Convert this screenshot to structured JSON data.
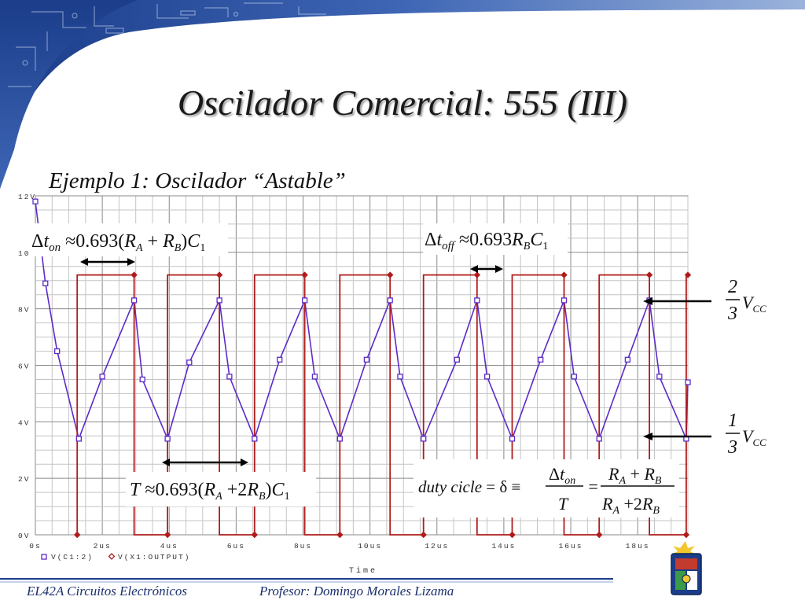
{
  "slide": {
    "title": "Oscilador Comercial: 555 (III)",
    "subtitle": "Ejemplo 1: Oscilador “Astable”",
    "footer_left": "EL42A Circuitos Electrónicos",
    "footer_right": "Profesor: Domingo Morales Lizama"
  },
  "annotations": {
    "ton_formula": "Δt_on ≈ 0.693(R_A + R_B)C_1",
    "toff_formula": "Δt_off ≈ 0.693 R_B C_1",
    "period_formula": "T ≈ 0.693(R_A + 2R_B)C_1",
    "duty_formula": "duty cicle = δ ≡ Δt_on / T = (R_A + R_B) / (R_A + 2R_B)",
    "upper_threshold": "2/3 V_CC",
    "lower_threshold": "1/3 V_CC"
  },
  "chart_data": {
    "type": "line",
    "xlabel": "Time",
    "ylabel": "",
    "x_unit": "us",
    "xlim": [
      0,
      19.5
    ],
    "ylim": [
      0,
      12
    ],
    "x_ticks": [
      {
        "value": 0,
        "label": "0s"
      },
      {
        "value": 2,
        "label": "2us"
      },
      {
        "value": 4,
        "label": "4us"
      },
      {
        "value": 6,
        "label": "6us"
      },
      {
        "value": 8,
        "label": "8us"
      },
      {
        "value": 10,
        "label": "10us"
      },
      {
        "value": 12,
        "label": "12us"
      },
      {
        "value": 14,
        "label": "14us"
      },
      {
        "value": 16,
        "label": "16us"
      },
      {
        "value": 18,
        "label": "18us"
      }
    ],
    "y_ticks": [
      {
        "value": 0,
        "label": "0V"
      },
      {
        "value": 2,
        "label": "2V"
      },
      {
        "value": 4,
        "label": "4V"
      },
      {
        "value": 6,
        "label": "6V"
      },
      {
        "value": 8,
        "label": "8V"
      },
      {
        "value": 10,
        "label": "10V"
      },
      {
        "value": 12,
        "label": "12V"
      }
    ],
    "grid": true,
    "legend_position": "bottom-left",
    "series": [
      {
        "name": "V(C1:2)",
        "color": "#5b2bc8",
        "marker": "square",
        "points": [
          [
            0,
            11.8
          ],
          [
            0.3,
            8.9
          ],
          [
            0.65,
            6.5
          ],
          [
            1.3,
            3.4
          ],
          [
            2.0,
            5.6
          ],
          [
            2.95,
            8.3
          ],
          [
            3.2,
            5.5
          ],
          [
            3.95,
            3.4
          ],
          [
            4.6,
            6.1
          ],
          [
            5.5,
            8.3
          ],
          [
            5.8,
            5.6
          ],
          [
            6.55,
            3.4
          ],
          [
            7.3,
            6.2
          ],
          [
            8.05,
            8.3
          ],
          [
            8.35,
            5.6
          ],
          [
            9.1,
            3.4
          ],
          [
            9.9,
            6.2
          ],
          [
            10.6,
            8.3
          ],
          [
            10.9,
            5.6
          ],
          [
            11.6,
            3.4
          ],
          [
            12.6,
            6.2
          ],
          [
            13.2,
            8.3
          ],
          [
            13.5,
            5.6
          ],
          [
            14.25,
            3.4
          ],
          [
            15.1,
            6.2
          ],
          [
            15.8,
            8.3
          ],
          [
            16.1,
            5.6
          ],
          [
            16.85,
            3.4
          ],
          [
            17.7,
            6.2
          ],
          [
            18.35,
            8.3
          ],
          [
            18.65,
            5.6
          ],
          [
            19.45,
            3.4
          ],
          [
            19.5,
            5.4
          ]
        ]
      },
      {
        "name": "V(X1:OUTPUT)",
        "color": "#b01c1c",
        "marker": "diamond",
        "points": [
          [
            1.25,
            0
          ],
          [
            1.25,
            9.2
          ],
          [
            2.95,
            9.2
          ],
          [
            2.95,
            0
          ],
          [
            3.95,
            0
          ],
          [
            3.95,
            9.2
          ],
          [
            5.5,
            9.2
          ],
          [
            5.5,
            0
          ],
          [
            6.55,
            0
          ],
          [
            6.55,
            9.2
          ],
          [
            8.05,
            9.2
          ],
          [
            8.05,
            0
          ],
          [
            9.1,
            0
          ],
          [
            9.1,
            9.2
          ],
          [
            10.6,
            9.2
          ],
          [
            10.6,
            0
          ],
          [
            11.6,
            0
          ],
          [
            11.6,
            9.2
          ],
          [
            13.2,
            9.2
          ],
          [
            13.2,
            0
          ],
          [
            14.25,
            0
          ],
          [
            14.25,
            9.2
          ],
          [
            15.8,
            9.2
          ],
          [
            15.8,
            0
          ],
          [
            16.85,
            0
          ],
          [
            16.85,
            9.2
          ],
          [
            18.35,
            9.2
          ],
          [
            18.35,
            0
          ],
          [
            19.45,
            0
          ],
          [
            19.45,
            9.2
          ],
          [
            19.5,
            9.2
          ]
        ]
      }
    ]
  }
}
